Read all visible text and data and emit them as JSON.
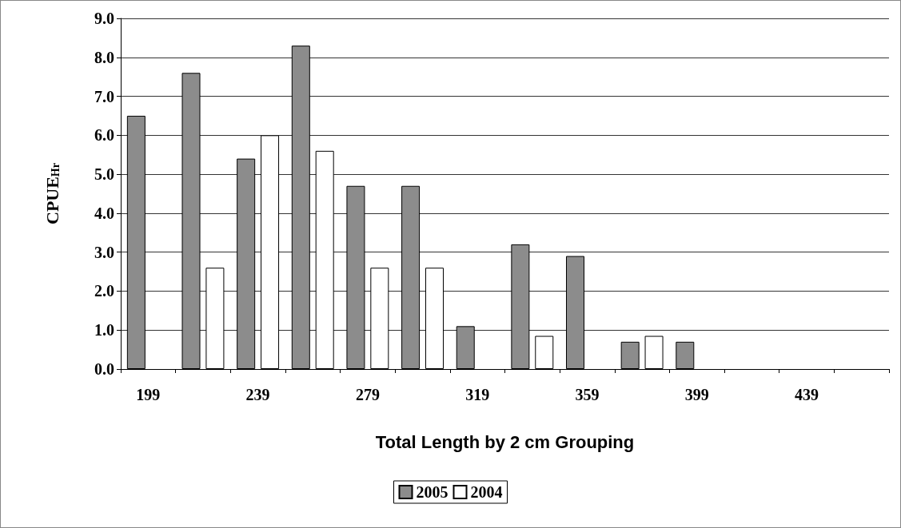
{
  "chart_data": {
    "type": "bar",
    "xlabel": "Total Length by 2 cm Grouping",
    "ylabel": "CPUE$_{Hr}$",
    "categories": [
      "199",
      null,
      "239",
      null,
      "279",
      null,
      "319",
      null,
      "359",
      null,
      "399",
      null,
      "439",
      null
    ],
    "series": [
      {
        "name": "2005",
        "color": "#8c8c8c",
        "values": [
          6.5,
          7.6,
          5.4,
          8.3,
          4.7,
          4.7,
          1.1,
          3.2,
          2.9,
          0.7,
          0.7,
          null,
          null,
          null
        ]
      },
      {
        "name": "2004",
        "color": "#ffffff",
        "values": [
          null,
          2.6,
          6.0,
          5.6,
          2.6,
          2.6,
          null,
          0.85,
          null,
          0.85,
          null,
          null,
          null,
          null
        ]
      }
    ],
    "ylim": [
      0,
      9
    ],
    "yticks": [
      {
        "value": 0,
        "label": "0.0"
      },
      {
        "value": 1,
        "label": "1.0"
      },
      {
        "value": 2,
        "label": "2.0"
      },
      {
        "value": 3,
        "label": "3.0"
      },
      {
        "value": 4,
        "label": "4.0"
      },
      {
        "value": 5,
        "label": "5.0"
      },
      {
        "value": 6,
        "label": "6.0"
      },
      {
        "value": 7,
        "label": "7.0"
      },
      {
        "value": 8,
        "label": "8.0"
      },
      {
        "value": 9,
        "label": "9.0"
      }
    ],
    "grid": "y",
    "legend": "bottom"
  }
}
